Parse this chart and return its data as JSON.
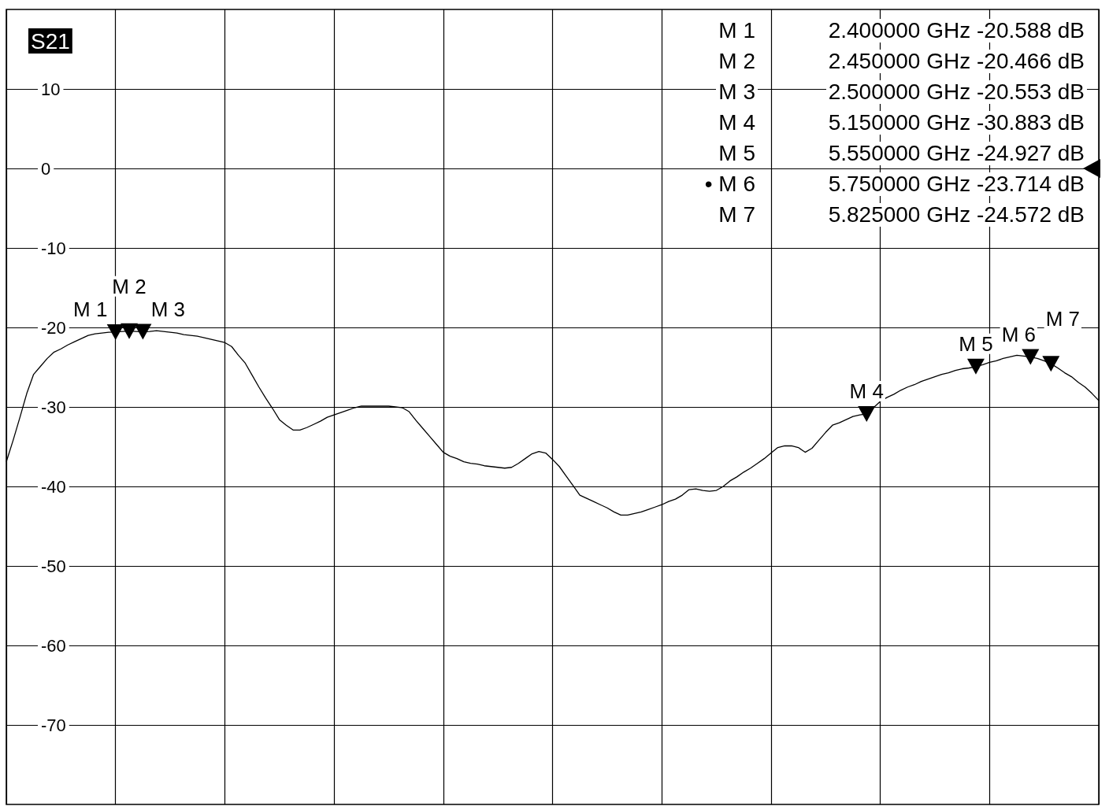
{
  "chart_data": {
    "type": "line",
    "title": "S21",
    "categories": [
      null,
      null,
      null,
      null,
      null,
      null,
      null,
      null,
      null,
      null,
      null,
      null,
      null,
      null,
      null,
      null,
      null,
      null,
      null,
      null,
      null,
      null,
      null,
      null,
      null,
      null,
      null,
      null,
      null,
      null,
      null,
      null,
      null,
      null,
      null,
      null,
      null,
      null,
      null,
      null,
      null,
      null,
      null,
      null,
      null,
      null,
      null,
      null,
      null,
      null,
      null,
      null,
      null,
      null,
      null,
      null,
      null,
      null,
      null,
      null,
      null,
      null,
      null,
      null,
      null,
      null,
      null,
      null,
      null,
      null,
      null,
      null,
      null,
      null,
      null,
      null,
      null,
      null,
      null,
      null,
      null,
      null,
      null,
      null,
      null,
      null,
      null,
      null,
      null,
      null,
      null,
      null,
      null,
      null,
      null,
      null,
      null,
      null,
      null,
      null,
      null,
      null,
      null,
      null,
      null,
      null,
      null,
      null,
      null,
      null,
      null,
      null,
      null,
      null,
      null,
      null,
      null,
      null,
      null,
      null,
      null,
      null,
      null,
      null,
      null,
      null,
      null,
      null,
      null,
      null,
      null,
      null,
      null,
      null,
      null,
      null,
      null,
      null,
      null,
      null,
      null,
      null,
      null,
      null,
      null,
      null,
      null,
      null,
      null,
      null,
      null,
      null,
      null,
      null,
      null,
      null,
      null,
      null,
      null,
      null,
      null
    ],
    "ylim": [
      -80,
      20
    ],
    "yticks": [
      -70,
      -60,
      -50,
      -40,
      -30,
      -20,
      -10,
      0,
      10
    ],
    "tick_labels": "y",
    "grid": true,
    "marker": "none",
    "line_style": "solid",
    "series": [
      {
        "color": "#000000",
        "values": [
          -36.9,
          -34.2,
          -31.3,
          -28.3,
          -25.9,
          -24.9,
          -23.9,
          -23.1,
          -22.7,
          -22.2,
          -21.8,
          -21.4,
          -21.0,
          -20.8,
          -20.7,
          -20.6,
          -20.588,
          -20.5,
          -20.466,
          -20.5,
          -20.553,
          -20.5,
          -20.4,
          -20.5,
          -20.6,
          -20.7,
          -20.9,
          -21.0,
          -21.1,
          -21.3,
          -21.5,
          -21.7,
          -21.9,
          -22.4,
          -23.5,
          -24.5,
          -26.0,
          -27.5,
          -28.9,
          -30.2,
          -31.6,
          -32.3,
          -32.9,
          -32.9,
          -32.6,
          -32.2,
          -31.8,
          -31.3,
          -31.0,
          -30.7,
          -30.4,
          -30.1,
          -29.9,
          -29.9,
          -29.9,
          -29.9,
          -29.9,
          -30.0,
          -30.1,
          -30.6,
          -31.7,
          -32.7,
          -33.7,
          -34.7,
          -35.7,
          -36.2,
          -36.5,
          -36.9,
          -37.1,
          -37.2,
          -37.4,
          -37.5,
          -37.6,
          -37.7,
          -37.6,
          -37.1,
          -36.5,
          -35.9,
          -35.6,
          -35.8,
          -36.6,
          -37.5,
          -38.7,
          -39.9,
          -41.1,
          -41.5,
          -41.9,
          -42.3,
          -42.7,
          -43.2,
          -43.6,
          -43.6,
          -43.4,
          -43.2,
          -42.9,
          -42.6,
          -42.3,
          -41.9,
          -41.6,
          -41.1,
          -40.4,
          -40.3,
          -40.5,
          -40.6,
          -40.5,
          -40.0,
          -39.3,
          -38.8,
          -38.2,
          -37.7,
          -37.1,
          -36.5,
          -35.8,
          -35.1,
          -34.9,
          -34.9,
          -35.1,
          -35.7,
          -35.2,
          -34.2,
          -33.2,
          -32.3,
          -32.0,
          -31.6,
          -31.2,
          -31.0,
          -30.883,
          -30.1,
          -29.3,
          -28.8,
          -28.4,
          -27.9,
          -27.5,
          -27.2,
          -26.8,
          -26.5,
          -26.2,
          -25.9,
          -25.7,
          -25.4,
          -25.2,
          -25.1,
          -24.927,
          -24.7,
          -24.4,
          -24.2,
          -23.9,
          -23.7,
          -23.5,
          -23.6,
          -23.714,
          -23.9,
          -24.2,
          -24.572,
          -25.1,
          -25.7,
          -26.2,
          -26.9,
          -27.5,
          -28.3,
          -29.2
        ],
        "value_labels": [
          null,
          null,
          null,
          null,
          null,
          null,
          null,
          null,
          null,
          null,
          null,
          null,
          null,
          null,
          null,
          null,
          "M 1",
          null,
          "M 2",
          null,
          "M 3",
          null,
          null,
          null,
          null,
          null,
          null,
          null,
          null,
          null,
          null,
          null,
          null,
          null,
          null,
          null,
          null,
          null,
          null,
          null,
          null,
          null,
          null,
          null,
          null,
          null,
          null,
          null,
          null,
          null,
          null,
          null,
          null,
          null,
          null,
          null,
          null,
          null,
          null,
          null,
          null,
          null,
          null,
          null,
          null,
          null,
          null,
          null,
          null,
          null,
          null,
          null,
          null,
          null,
          null,
          null,
          null,
          null,
          null,
          null,
          null,
          null,
          null,
          null,
          null,
          null,
          null,
          null,
          null,
          null,
          null,
          null,
          null,
          null,
          null,
          null,
          null,
          null,
          null,
          null,
          null,
          null,
          null,
          null,
          null,
          null,
          null,
          null,
          null,
          null,
          null,
          null,
          null,
          null,
          null,
          null,
          null,
          null,
          null,
          null,
          null,
          null,
          null,
          null,
          null,
          null,
          "M 4",
          null,
          null,
          null,
          null,
          null,
          null,
          null,
          null,
          null,
          null,
          null,
          null,
          null,
          null,
          null,
          "M 5",
          null,
          null,
          null,
          null,
          null,
          null,
          null,
          "M 6",
          null,
          null,
          "M 7",
          null,
          null,
          null,
          null,
          null,
          null,
          null
        ]
      }
    ],
    "annotations": [
      "M 1",
      "2.400000 GHz  -20.588 dB",
      "M 2",
      "2.450000 GHz  -20.466 dB",
      "M 3",
      "2.500000 GHz  -20.553 dB",
      "M 4",
      "5.150000 GHz  -30.883 dB",
      "M 5",
      "5.550000 GHz  -24.927 dB",
      "• M 6",
      "5.750000 GHz  -23.714 dB",
      "M 7",
      "5.825000 GHz  -24.572 dB"
    ]
  }
}
